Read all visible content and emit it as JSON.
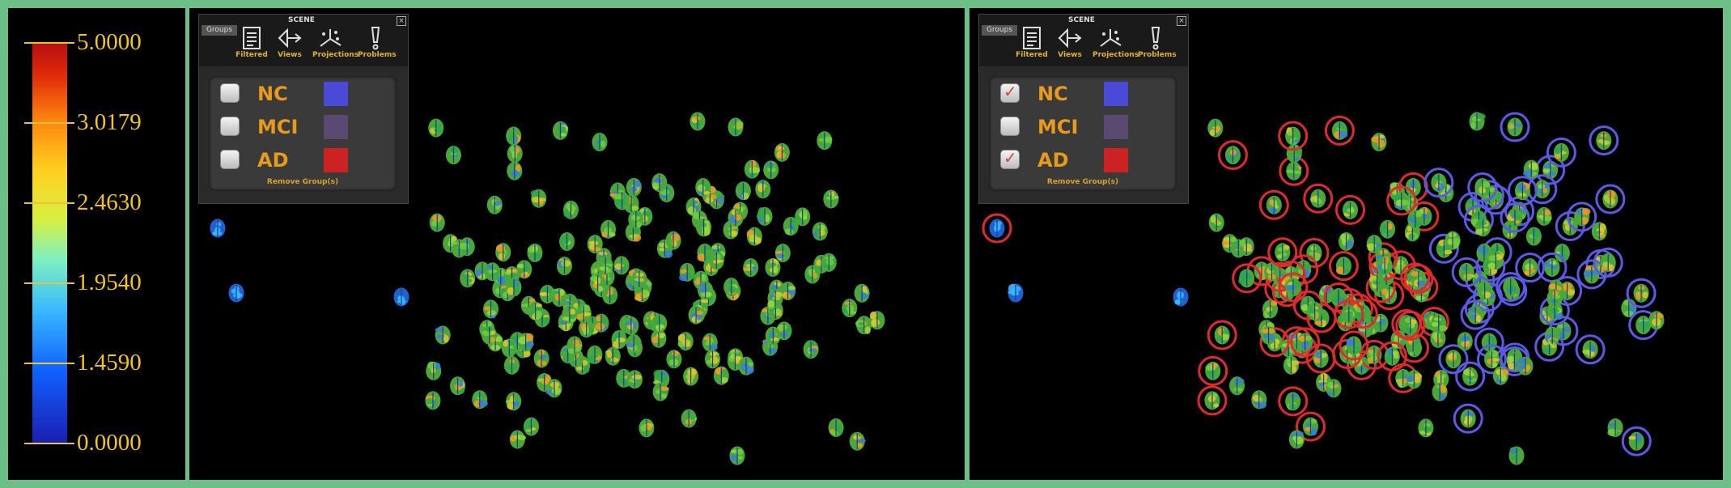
{
  "colors": {
    "frame": "#6dbf88",
    "ring_red": "#e02b2b",
    "ring_blue": "#5a5ae6",
    "nc": "#4a4ad8",
    "mci": "#5a4a72",
    "ad": "#cc2222",
    "label": "#f2c51d"
  },
  "legend": {
    "ticks": [
      {
        "value": "5.0000",
        "level": 1.0
      },
      {
        "value": "3.0179",
        "level": 0.8
      },
      {
        "value": "2.4630",
        "level": 0.6
      },
      {
        "value": "1.9540",
        "level": 0.4
      },
      {
        "value": "1.4590",
        "level": 0.2
      },
      {
        "value": "0.0000",
        "level": 0.0
      }
    ]
  },
  "toolbar": {
    "groups_tab": "Groups",
    "scene_label": "SCENE",
    "close_label": "×",
    "tools": [
      {
        "label": "Filtered",
        "icon": "document-icon"
      },
      {
        "label": "Views",
        "icon": "views-icon"
      },
      {
        "label": "Projections",
        "icon": "projections-icon"
      },
      {
        "label": "Problems",
        "icon": "exclamation-icon"
      }
    ],
    "remove_label": "Remove Group(s)"
  },
  "panels": {
    "left": {
      "groups": [
        {
          "name": "NC",
          "checked": false,
          "color": "#4a4ad8"
        },
        {
          "name": "MCI",
          "checked": false,
          "color": "#5a4a72"
        },
        {
          "name": "AD",
          "checked": false,
          "color": "#cc2222"
        }
      ]
    },
    "right": {
      "groups": [
        {
          "name": "NC",
          "checked": true,
          "color": "#4a4ad8"
        },
        {
          "name": "MCI",
          "checked": false,
          "color": "#5a4a72"
        },
        {
          "name": "AD",
          "checked": true,
          "color": "#cc2222"
        }
      ]
    }
  }
}
